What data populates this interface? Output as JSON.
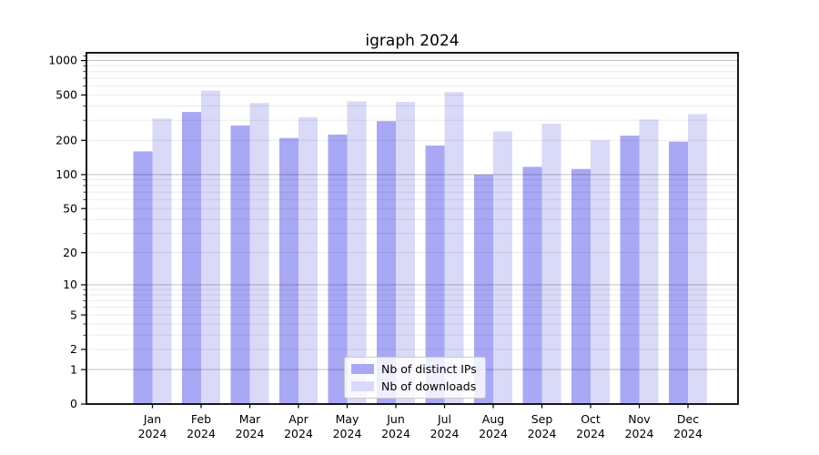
{
  "title": "igraph 2024",
  "legend": {
    "items": [
      {
        "label": "Nb of distinct IPs",
        "color": "#a8a8f4"
      },
      {
        "label": "Nb of downloads",
        "color": "#d9d9f8"
      }
    ]
  },
  "axes": {
    "ytick_labels": [
      "0",
      "1",
      "2",
      "5",
      "10",
      "20",
      "50",
      "100",
      "200",
      "500",
      "1000"
    ]
  },
  "chart_data": {
    "type": "bar",
    "title": "igraph 2024",
    "categories": [
      "Jan 2024",
      "Feb 2024",
      "Mar 2024",
      "Apr 2024",
      "May 2024",
      "Jun 2024",
      "Jul 2024",
      "Aug 2024",
      "Sep 2024",
      "Oct 2024",
      "Nov 2024",
      "Dec 2024"
    ],
    "series": [
      {
        "name": "Nb of distinct IPs",
        "color": "#a8a8f4",
        "values": [
          160,
          355,
          270,
          210,
          225,
          295,
          180,
          100,
          117,
          112,
          220,
          195
        ]
      },
      {
        "name": "Nb of downloads",
        "color": "#d9d9f8",
        "values": [
          310,
          545,
          425,
          320,
          440,
          435,
          530,
          240,
          280,
          200,
          305,
          340
        ]
      }
    ],
    "xlabel": "",
    "ylabel": "",
    "yscale": "log10(1+x)",
    "ylim": [
      0,
      1170
    ],
    "yticks": [
      0,
      1,
      2,
      5,
      10,
      20,
      50,
      100,
      200,
      500,
      1000
    ],
    "grid": "horizontal major+minor, drawn over bars",
    "legend_position": "lower center"
  }
}
